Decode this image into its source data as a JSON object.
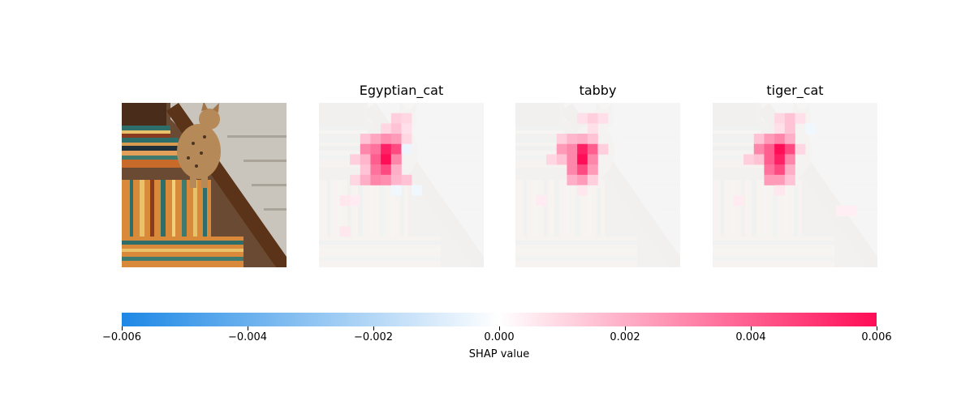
{
  "chart_data": {
    "type": "heatmap",
    "title": "",
    "panels": [
      {
        "title": "",
        "kind": "image"
      },
      {
        "title": "Egyptian_cat",
        "kind": "shap",
        "class": "Egyptian_cat"
      },
      {
        "title": "tabby",
        "kind": "shap",
        "class": "tabby"
      },
      {
        "title": "tiger_cat",
        "kind": "shap",
        "class": "tiger_cat"
      }
    ],
    "grid_size": 16,
    "value_range": [
      -0.006,
      0.006
    ],
    "colorbar": {
      "label": "SHAP value",
      "ticks": [
        -0.006,
        -0.004,
        -0.002,
        0.0,
        0.002,
        0.004,
        0.006
      ],
      "tick_labels": [
        "−0.006",
        "−0.004",
        "−0.002",
        "0.000",
        "0.002",
        "0.004",
        "0.006"
      ],
      "colormap": [
        "#1e88e5",
        "#ffffff",
        "#ff0d57"
      ]
    },
    "attributions": {
      "Egyptian_cat": [
        {
          "row": 1,
          "col": 7,
          "value": 0.0012
        },
        {
          "row": 1,
          "col": 8,
          "value": 0.001
        },
        {
          "row": 2,
          "col": 6,
          "value": 0.001
        },
        {
          "row": 2,
          "col": 7,
          "value": 0.0015
        },
        {
          "row": 2,
          "col": 8,
          "value": 0.0008
        },
        {
          "row": 3,
          "col": 4,
          "value": 0.0015
        },
        {
          "row": 3,
          "col": 5,
          "value": 0.0022
        },
        {
          "row": 3,
          "col": 6,
          "value": 0.0028
        },
        {
          "row": 3,
          "col": 7,
          "value": 0.0025
        },
        {
          "row": 3,
          "col": 8,
          "value": 0.001
        },
        {
          "row": 4,
          "col": 4,
          "value": 0.003
        },
        {
          "row": 4,
          "col": 5,
          "value": 0.0035
        },
        {
          "row": 4,
          "col": 6,
          "value": 0.0055
        },
        {
          "row": 4,
          "col": 7,
          "value": 0.0045
        },
        {
          "row": 4,
          "col": 8,
          "value": -0.0005
        },
        {
          "row": 5,
          "col": 3,
          "value": 0.0012
        },
        {
          "row": 5,
          "col": 4,
          "value": 0.0018
        },
        {
          "row": 5,
          "col": 5,
          "value": 0.004
        },
        {
          "row": 5,
          "col": 6,
          "value": 0.006
        },
        {
          "row": 5,
          "col": 7,
          "value": 0.003
        },
        {
          "row": 6,
          "col": 4,
          "value": 0.0015
        },
        {
          "row": 6,
          "col": 5,
          "value": 0.0035
        },
        {
          "row": 6,
          "col": 6,
          "value": 0.0045
        },
        {
          "row": 6,
          "col": 7,
          "value": 0.002
        },
        {
          "row": 7,
          "col": 3,
          "value": 0.001
        },
        {
          "row": 7,
          "col": 4,
          "value": 0.002
        },
        {
          "row": 7,
          "col": 5,
          "value": 0.003
        },
        {
          "row": 7,
          "col": 6,
          "value": 0.0028
        },
        {
          "row": 7,
          "col": 7,
          "value": 0.0018
        },
        {
          "row": 7,
          "col": 8,
          "value": 0.0015
        },
        {
          "row": 8,
          "col": 7,
          "value": -0.0004
        },
        {
          "row": 8,
          "col": 9,
          "value": -0.0004
        },
        {
          "row": 9,
          "col": 2,
          "value": 0.0006
        },
        {
          "row": 9,
          "col": 3,
          "value": 0.0005
        },
        {
          "row": 12,
          "col": 2,
          "value": 0.0006
        }
      ],
      "tabby": [
        {
          "row": 1,
          "col": 6,
          "value": 0.0008
        },
        {
          "row": 1,
          "col": 7,
          "value": 0.0012
        },
        {
          "row": 1,
          "col": 8,
          "value": 0.0008
        },
        {
          "row": 2,
          "col": 7,
          "value": 0.0008
        },
        {
          "row": 3,
          "col": 4,
          "value": 0.0012
        },
        {
          "row": 3,
          "col": 5,
          "value": 0.0018
        },
        {
          "row": 3,
          "col": 6,
          "value": 0.002
        },
        {
          "row": 3,
          "col": 7,
          "value": 0.0015
        },
        {
          "row": 4,
          "col": 4,
          "value": 0.0025
        },
        {
          "row": 4,
          "col": 5,
          "value": 0.003
        },
        {
          "row": 4,
          "col": 6,
          "value": 0.0055
        },
        {
          "row": 4,
          "col": 7,
          "value": 0.004
        },
        {
          "row": 4,
          "col": 8,
          "value": 0.0012
        },
        {
          "row": 5,
          "col": 3,
          "value": 0.001
        },
        {
          "row": 5,
          "col": 4,
          "value": 0.0015
        },
        {
          "row": 5,
          "col": 5,
          "value": 0.003
        },
        {
          "row": 5,
          "col": 6,
          "value": 0.006
        },
        {
          "row": 5,
          "col": 7,
          "value": 0.003
        },
        {
          "row": 6,
          "col": 5,
          "value": 0.003
        },
        {
          "row": 6,
          "col": 6,
          "value": 0.0045
        },
        {
          "row": 6,
          "col": 7,
          "value": 0.0025
        },
        {
          "row": 7,
          "col": 5,
          "value": 0.002
        },
        {
          "row": 7,
          "col": 6,
          "value": 0.0025
        },
        {
          "row": 7,
          "col": 7,
          "value": 0.0012
        },
        {
          "row": 8,
          "col": 6,
          "value": 0.0006
        },
        {
          "row": 9,
          "col": 2,
          "value": 0.0005
        }
      ],
      "tiger_cat": [
        {
          "row": 1,
          "col": 6,
          "value": 0.001
        },
        {
          "row": 1,
          "col": 7,
          "value": 0.0015
        },
        {
          "row": 1,
          "col": 8,
          "value": 0.0008
        },
        {
          "row": 2,
          "col": 6,
          "value": 0.0008
        },
        {
          "row": 2,
          "col": 7,
          "value": 0.0015
        },
        {
          "row": 2,
          "col": 9,
          "value": -0.0004
        },
        {
          "row": 3,
          "col": 4,
          "value": 0.0015
        },
        {
          "row": 3,
          "col": 5,
          "value": 0.0025
        },
        {
          "row": 3,
          "col": 6,
          "value": 0.003
        },
        {
          "row": 3,
          "col": 7,
          "value": 0.002
        },
        {
          "row": 4,
          "col": 4,
          "value": 0.003
        },
        {
          "row": 4,
          "col": 5,
          "value": 0.004
        },
        {
          "row": 4,
          "col": 6,
          "value": 0.006
        },
        {
          "row": 4,
          "col": 7,
          "value": 0.0045
        },
        {
          "row": 4,
          "col": 8,
          "value": 0.001
        },
        {
          "row": 5,
          "col": 3,
          "value": 0.0012
        },
        {
          "row": 5,
          "col": 4,
          "value": 0.0015
        },
        {
          "row": 5,
          "col": 5,
          "value": 0.004
        },
        {
          "row": 5,
          "col": 6,
          "value": 0.0055
        },
        {
          "row": 5,
          "col": 7,
          "value": 0.003
        },
        {
          "row": 6,
          "col": 5,
          "value": 0.0035
        },
        {
          "row": 6,
          "col": 6,
          "value": 0.0045
        },
        {
          "row": 6,
          "col": 7,
          "value": 0.002
        },
        {
          "row": 7,
          "col": 5,
          "value": 0.0025
        },
        {
          "row": 7,
          "col": 6,
          "value": 0.0025
        },
        {
          "row": 7,
          "col": 7,
          "value": 0.0015
        },
        {
          "row": 8,
          "col": 6,
          "value": 0.0006
        },
        {
          "row": 9,
          "col": 2,
          "value": 0.0005
        },
        {
          "row": 10,
          "col": 12,
          "value": 0.0004
        },
        {
          "row": 10,
          "col": 13,
          "value": 0.0004
        }
      ]
    }
  }
}
